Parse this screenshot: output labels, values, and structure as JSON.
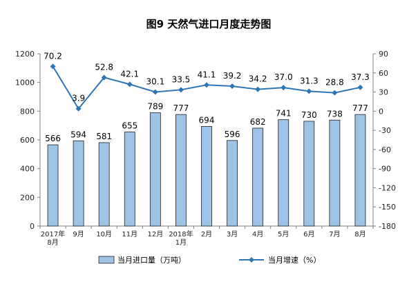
{
  "chart_data": {
    "type": "bar",
    "title": "图9  天然气进口月度走势图",
    "categories": [
      "2017年\n8月",
      "9月",
      "10月",
      "11月",
      "12月",
      "2018年\n1月",
      "2月",
      "3月",
      "4月",
      "5月",
      "6月",
      "7月",
      "8月"
    ],
    "series": [
      {
        "name": "当月进口量（万吨）",
        "type": "bar",
        "axis": "left",
        "color": "#9DC3E6",
        "values": [
          566,
          594,
          581,
          655,
          789,
          777,
          694,
          596,
          682,
          741,
          730,
          738,
          777
        ]
      },
      {
        "name": "当月增速（%）",
        "type": "line",
        "axis": "right",
        "color": "#2E75B6",
        "values": [
          70.2,
          3.9,
          52.8,
          42.1,
          30.1,
          33.5,
          41.1,
          39.2,
          34.2,
          37.0,
          31.3,
          28.8,
          37.3
        ]
      }
    ],
    "y_left": {
      "ylim": [
        0,
        1200
      ],
      "ticks": [
        "0",
        "200",
        "400",
        "600",
        "800",
        "1000",
        "1200"
      ]
    },
    "y_right": {
      "ylim": [
        -180,
        90
      ],
      "ticks": [
        "-180",
        "-150",
        "-120",
        "-90",
        "-60",
        "-30",
        "0",
        "30",
        "60",
        "90"
      ]
    },
    "bar_labels": [
      "566",
      "594",
      "581",
      "655",
      "789",
      "777",
      "694",
      "596",
      "682",
      "741",
      "730",
      "738",
      "777"
    ],
    "line_labels": [
      "70.2",
      "3.9",
      "52.8",
      "42.1",
      "30.1",
      "33.5",
      "41.1",
      "39.2",
      "34.2",
      "37.0",
      "31.3",
      "28.8",
      "37.3"
    ],
    "grid": false,
    "legend_position": "bottom"
  }
}
